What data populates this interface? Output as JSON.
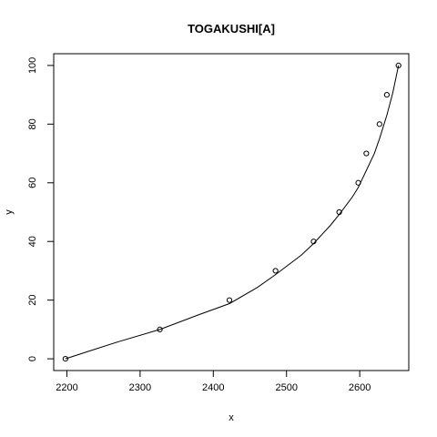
{
  "chart_data": {
    "type": "scatter",
    "title": "TOGAKUSHI[A]",
    "xlabel": "x",
    "ylabel": "y",
    "xlim": [
      2182,
      2667
    ],
    "ylim": [
      -4,
      104
    ],
    "x_ticks": [
      2200,
      2300,
      2400,
      2500,
      2600
    ],
    "y_ticks": [
      0,
      20,
      40,
      60,
      80,
      100
    ],
    "grid": false,
    "legend": "none",
    "points": {
      "x": [
        2198,
        2327,
        2422,
        2485,
        2537,
        2572,
        2598,
        2609,
        2627,
        2637,
        2653
      ],
      "y": [
        0,
        10,
        20,
        30,
        40,
        50,
        60,
        70,
        80,
        90,
        100
      ]
    },
    "fitted_curve": {
      "x": [
        2198,
        2230,
        2270,
        2327,
        2380,
        2422,
        2460,
        2485,
        2520,
        2537,
        2560,
        2572,
        2590,
        2598,
        2609,
        2620,
        2627,
        2637,
        2645,
        2653
      ],
      "y": [
        0,
        2.6,
        5.8,
        10,
        15,
        18.8,
        24.3,
        28.7,
        35.3,
        39.3,
        45.5,
        49.2,
        55.2,
        58.4,
        64.2,
        70,
        75,
        83,
        90.5,
        100
      ]
    }
  }
}
